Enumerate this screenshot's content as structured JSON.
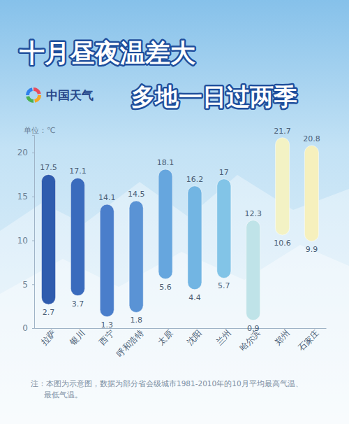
{
  "chart_data": {
    "type": "range_bar",
    "title": "十月昼夜温差大",
    "subtitle": "多地一日过两季",
    "source": "中国天气",
    "unit": "单位：℃",
    "note": [
      "注：本图为示意图，数据为部分省会级城市1981-2010年的10月平均最高气温、",
      "最低气温。"
    ],
    "categories": [
      "拉萨",
      "银川",
      "西宁",
      "呼和浩特",
      "太原",
      "沈阳",
      "兰州",
      "哈尔滨",
      "郑州",
      "石家庄"
    ],
    "low": [
      2.7,
      3.7,
      1.3,
      1.8,
      5.6,
      4.4,
      5.7,
      0.9,
      10.6,
      9.9
    ],
    "high": [
      17.5,
      17.1,
      14.1,
      14.5,
      18.1,
      16.2,
      17,
      12.3,
      21.7,
      20.8
    ],
    "colors": [
      "#2f5cae",
      "#3a6bbd",
      "#4a7ecb",
      "#5a93d5",
      "#66a6de",
      "#72b5e3",
      "#82c4e7",
      "#bfe3e8",
      "#f3f2c4",
      "#f6f0bd"
    ],
    "ylim": [
      0,
      22
    ],
    "yticks": [
      0,
      5,
      10,
      15,
      20
    ],
    "grid": false,
    "data_labels": true
  }
}
